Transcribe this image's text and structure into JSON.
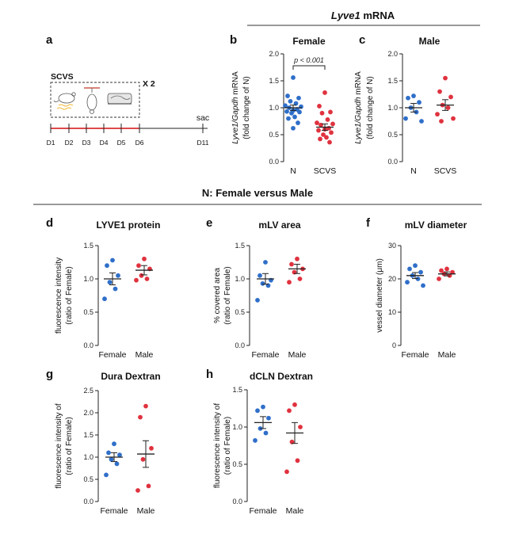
{
  "headers": {
    "top_prefix": "Lyve1",
    "top_suffix": " mRNA",
    "middle": "N: Female versus Male"
  },
  "colors": {
    "blue": "#2f6fc9",
    "red": "#e0323f",
    "axis": "#222222",
    "mean": "#222222"
  },
  "timeline": {
    "letter": "a",
    "title": "SCVS",
    "repeat": "X 2",
    "days": [
      "D1",
      "D2",
      "D3",
      "D4",
      "D5",
      "D6",
      "D11"
    ],
    "sac": "sac"
  },
  "chart_data": [
    {
      "id": "b",
      "letter": "b",
      "type": "scatter",
      "title": "Female",
      "ylabel_italic": "Lyve1/Gapdh",
      "ylabel_rest": " mRNA",
      "ylabel2": "(fold change of N)",
      "ylim": [
        0,
        2.0
      ],
      "yticks": [
        "0.0",
        "0.5",
        "1.0",
        "1.5",
        "2.0"
      ],
      "categories": [
        "N",
        "SCVS"
      ],
      "annotation": "p < 0.001",
      "groups": [
        {
          "category": "N",
          "color": "blue",
          "mean": 1.0,
          "sem": 0.05,
          "values": [
            1.56,
            1.22,
            1.18,
            1.12,
            1.08,
            1.04,
            1.02,
            1.0,
            0.97,
            0.95,
            0.93,
            0.92,
            0.9,
            0.83,
            0.8,
            0.72,
            0.62
          ]
        },
        {
          "category": "SCVS",
          "color": "red",
          "mean": 0.64,
          "sem": 0.06,
          "values": [
            1.28,
            1.03,
            0.92,
            0.9,
            0.78,
            0.72,
            0.7,
            0.68,
            0.62,
            0.6,
            0.58,
            0.54,
            0.5,
            0.45,
            0.42,
            0.36
          ]
        }
      ]
    },
    {
      "id": "c",
      "letter": "c",
      "type": "scatter",
      "title": "Male",
      "ylabel_italic": "Lyve1/Gapdh",
      "ylabel_rest": " mRNA",
      "ylabel2": "(fold change of N)",
      "ylim": [
        0,
        2.0
      ],
      "yticks": [
        "0.0",
        "0.5",
        "1.0",
        "1.5",
        "2.0"
      ],
      "categories": [
        "N",
        "SCVS"
      ],
      "groups": [
        {
          "category": "N",
          "color": "blue",
          "mean": 1.0,
          "sem": 0.08,
          "values": [
            1.22,
            1.18,
            1.1,
            1.0,
            0.92,
            0.8,
            0.75
          ]
        },
        {
          "category": "SCVS",
          "color": "red",
          "mean": 1.05,
          "sem": 0.1,
          "values": [
            1.55,
            1.3,
            1.2,
            1.05,
            1.0,
            0.88,
            0.8,
            0.75
          ]
        }
      ]
    },
    {
      "id": "d",
      "letter": "d",
      "type": "scatter",
      "title": "LYVE1 protein",
      "ylabel1": "fluorescence intensity",
      "ylabel2": "(ratio of Female)",
      "ylim": [
        0,
        1.5
      ],
      "yticks": [
        "0.0",
        "0.5",
        "1.0",
        "1.5"
      ],
      "categories": [
        "Female",
        "Male"
      ],
      "groups": [
        {
          "category": "Female",
          "color": "blue",
          "mean": 1.0,
          "sem": 0.09,
          "values": [
            1.28,
            1.2,
            1.05,
            0.95,
            0.85,
            0.7
          ]
        },
        {
          "category": "Male",
          "color": "red",
          "mean": 1.13,
          "sem": 0.07,
          "values": [
            1.3,
            1.2,
            1.15,
            1.05,
            1.0,
            0.98
          ]
        }
      ]
    },
    {
      "id": "e",
      "letter": "e",
      "type": "scatter",
      "title": "mLV area",
      "ylabel1": "% covered area",
      "ylabel2": "(ratio of Female)",
      "ylim": [
        0,
        1.5
      ],
      "yticks": [
        "0.0",
        "0.5",
        "1.0",
        "1.5"
      ],
      "categories": [
        "Female",
        "Male"
      ],
      "groups": [
        {
          "category": "Female",
          "color": "blue",
          "mean": 1.0,
          "sem": 0.08,
          "values": [
            1.25,
            1.05,
            0.98,
            0.93,
            0.9,
            0.68
          ]
        },
        {
          "category": "Male",
          "color": "red",
          "mean": 1.15,
          "sem": 0.07,
          "values": [
            1.3,
            1.22,
            1.15,
            1.1,
            1.0,
            0.95
          ]
        }
      ]
    },
    {
      "id": "f",
      "letter": "f",
      "type": "scatter",
      "title": "mLV diameter",
      "ylabel1": "vessel diameter (μm)",
      "ylim": [
        0,
        30
      ],
      "yticks": [
        "0",
        "10",
        "20",
        "30"
      ],
      "categories": [
        "Female",
        "Male"
      ],
      "groups": [
        {
          "category": "Female",
          "color": "blue",
          "mean": 21,
          "sem": 0.9,
          "values": [
            24,
            23,
            22,
            21,
            20,
            19,
            18
          ]
        },
        {
          "category": "Male",
          "color": "red",
          "mean": 21.5,
          "sem": 0.6,
          "values": [
            23,
            22.5,
            22,
            21.5,
            21,
            20
          ]
        }
      ]
    },
    {
      "id": "g",
      "letter": "g",
      "type": "scatter",
      "title": "Dura Dextran",
      "ylabel1": "fluorescence intensity of",
      "ylabel2": "(ratio of Female)",
      "ylim": [
        0,
        2.5
      ],
      "yticks": [
        "0.0",
        "0.5",
        "1.0",
        "1.5",
        "2.0",
        "2.5"
      ],
      "categories": [
        "Female",
        "Male"
      ],
      "groups": [
        {
          "category": "Female",
          "color": "blue",
          "mean": 1.0,
          "sem": 0.1,
          "values": [
            1.3,
            1.1,
            1.05,
            0.95,
            0.85,
            0.6
          ]
        },
        {
          "category": "Male",
          "color": "red",
          "mean": 1.07,
          "sem": 0.3,
          "values": [
            2.15,
            1.9,
            1.2,
            0.95,
            0.35,
            0.25
          ]
        }
      ]
    },
    {
      "id": "h",
      "letter": "h",
      "type": "scatter",
      "title": "dCLN Dextran",
      "ylabel1": "fluorescence intensity of",
      "ylabel2": "(ratio of Female)",
      "ylim": [
        0,
        1.5
      ],
      "yticks": [
        "0.0",
        "0.5",
        "1.0",
        "1.5"
      ],
      "categories": [
        "Female",
        "Male"
      ],
      "groups": [
        {
          "category": "Female",
          "color": "blue",
          "mean": 1.06,
          "sem": 0.08,
          "values": [
            1.27,
            1.22,
            1.12,
            0.98,
            0.92,
            0.82
          ]
        },
        {
          "category": "Male",
          "color": "red",
          "mean": 0.92,
          "sem": 0.14,
          "values": [
            1.3,
            1.22,
            1.0,
            0.8,
            0.55,
            0.4
          ]
        }
      ]
    }
  ]
}
